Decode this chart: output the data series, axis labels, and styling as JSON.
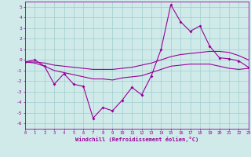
{
  "x": [
    0,
    1,
    2,
    3,
    4,
    5,
    6,
    7,
    8,
    9,
    10,
    11,
    12,
    13,
    14,
    15,
    16,
    17,
    18,
    19,
    20,
    21,
    22,
    23
  ],
  "y_main": [
    -0.2,
    0.0,
    -0.6,
    -2.3,
    -1.3,
    -2.3,
    -2.5,
    -5.5,
    -4.5,
    -4.8,
    -3.8,
    -2.6,
    -3.3,
    -1.5,
    1.0,
    5.2,
    3.6,
    2.7,
    3.2,
    1.3,
    0.2,
    0.1,
    -0.1,
    -0.7
  ],
  "y_upper": [
    -0.2,
    -0.2,
    -0.3,
    -0.5,
    -0.6,
    -0.7,
    -0.8,
    -0.9,
    -0.9,
    -0.9,
    -0.8,
    -0.7,
    -0.5,
    -0.3,
    0.0,
    0.3,
    0.5,
    0.6,
    0.7,
    0.8,
    0.8,
    0.7,
    0.4,
    0.0
  ],
  "y_lower": [
    -0.2,
    -0.3,
    -0.6,
    -1.0,
    -1.2,
    -1.4,
    -1.6,
    -1.8,
    -1.8,
    -1.9,
    -1.7,
    -1.6,
    -1.5,
    -1.2,
    -0.9,
    -0.6,
    -0.5,
    -0.4,
    -0.4,
    -0.4,
    -0.6,
    -0.8,
    -0.9,
    -0.8
  ],
  "line_color": "#990099",
  "bg_color": "#d0eaea",
  "grid_color": "#a0cccc",
  "xlabel": "Windchill (Refroidissement éolien,°C)",
  "ylim": [
    -6.5,
    5.5
  ],
  "xlim": [
    0,
    23
  ],
  "yticks": [
    -6,
    -5,
    -4,
    -3,
    -2,
    -1,
    0,
    1,
    2,
    3,
    4,
    5
  ],
  "xticks": [
    0,
    1,
    2,
    3,
    4,
    5,
    6,
    7,
    8,
    9,
    10,
    11,
    12,
    13,
    14,
    15,
    16,
    17,
    18,
    19,
    20,
    21,
    22,
    23
  ]
}
